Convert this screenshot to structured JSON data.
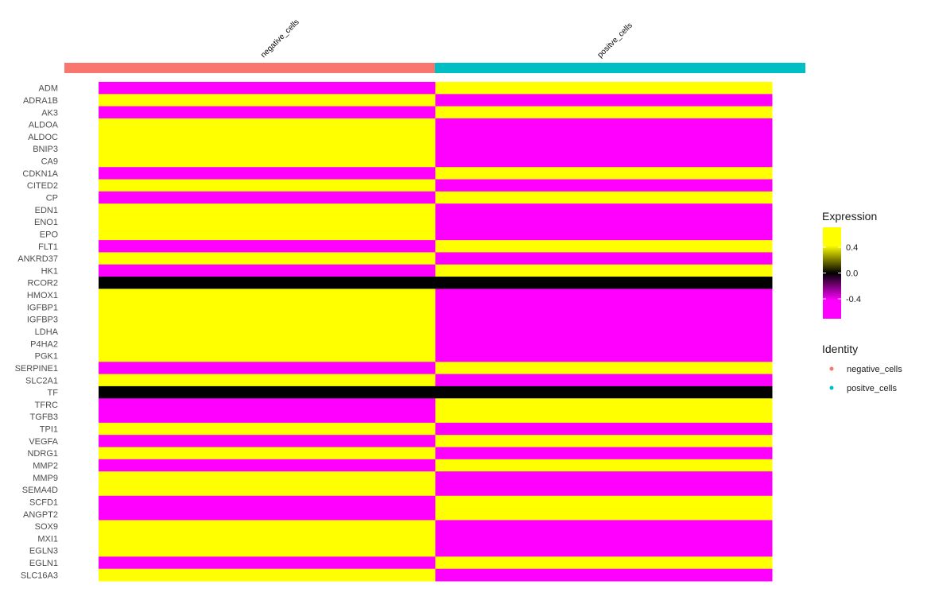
{
  "chart_data": {
    "type": "heatmap",
    "title": "",
    "xlabel": "",
    "ylabel": "",
    "groups": [
      {
        "name": "negative_cells",
        "color": "#F8766D"
      },
      {
        "name": "positve_cells",
        "color": "#00BFC4"
      }
    ],
    "genes": [
      "ADM",
      "ADRA1B",
      "AK3",
      "ALDOA",
      "ALDOC",
      "BNIP3",
      "CA9",
      "CDKN1A",
      "CITED2",
      "CP",
      "EDN1",
      "ENO1",
      "EPO",
      "FLT1",
      "ANKRD37",
      "HK1",
      "RCOR2",
      "HMOX1",
      "IGFBP1",
      "IGFBP3",
      "LDHA",
      "P4HA2",
      "PGK1",
      "SERPINE1",
      "SLC2A1",
      "TF",
      "TFRC",
      "TGFB3",
      "TPI1",
      "VEGFA",
      "NDRG1",
      "MMP2",
      "MMP9",
      "SEMA4D",
      "SCFD1",
      "ANGPT2",
      "SOX9",
      "MXI1",
      "EGLN3",
      "EGLN1",
      "SLC16A3"
    ],
    "values": [
      [
        -0.707,
        0.707
      ],
      [
        0.707,
        -0.707
      ],
      [
        -0.707,
        0.707
      ],
      [
        0.707,
        -0.707
      ],
      [
        0.707,
        -0.707
      ],
      [
        0.707,
        -0.707
      ],
      [
        0.707,
        -0.707
      ],
      [
        -0.707,
        0.707
      ],
      [
        0.707,
        -0.707
      ],
      [
        -0.707,
        0.707
      ],
      [
        0.707,
        -0.707
      ],
      [
        0.707,
        -0.707
      ],
      [
        0.707,
        -0.707
      ],
      [
        -0.707,
        0.707
      ],
      [
        0.707,
        -0.707
      ],
      [
        -0.707,
        0.707
      ],
      [
        0,
        0
      ],
      [
        0.707,
        -0.707
      ],
      [
        0.707,
        -0.707
      ],
      [
        0.707,
        -0.707
      ],
      [
        0.707,
        -0.707
      ],
      [
        0.707,
        -0.707
      ],
      [
        0.707,
        -0.707
      ],
      [
        -0.707,
        0.707
      ],
      [
        0.707,
        -0.707
      ],
      [
        0,
        0
      ],
      [
        -0.707,
        0.707
      ],
      [
        -0.707,
        0.707
      ],
      [
        0.707,
        -0.707
      ],
      [
        -0.707,
        0.707
      ],
      [
        0.707,
        -0.707
      ],
      [
        -0.707,
        0.707
      ],
      [
        0.707,
        -0.707
      ],
      [
        0.707,
        -0.707
      ],
      [
        -0.707,
        0.707
      ],
      [
        -0.707,
        0.707
      ],
      [
        0.707,
        -0.707
      ],
      [
        0.707,
        -0.707
      ],
      [
        0.707,
        -0.707
      ],
      [
        -0.707,
        0.707
      ],
      [
        0.707,
        -0.707
      ]
    ],
    "color_scale": {
      "low": "#FF00FF",
      "mid": "#000000",
      "high": "#FFFF00",
      "range": [
        -0.707,
        0.707
      ]
    },
    "legend_expression": {
      "title": "Expression",
      "ticks": [
        0.4,
        0.0,
        -0.4
      ],
      "tick_labels": [
        "0.4",
        "0.0",
        "-0.4"
      ]
    },
    "legend_identity": {
      "title": "Identity",
      "placement": "right"
    }
  }
}
